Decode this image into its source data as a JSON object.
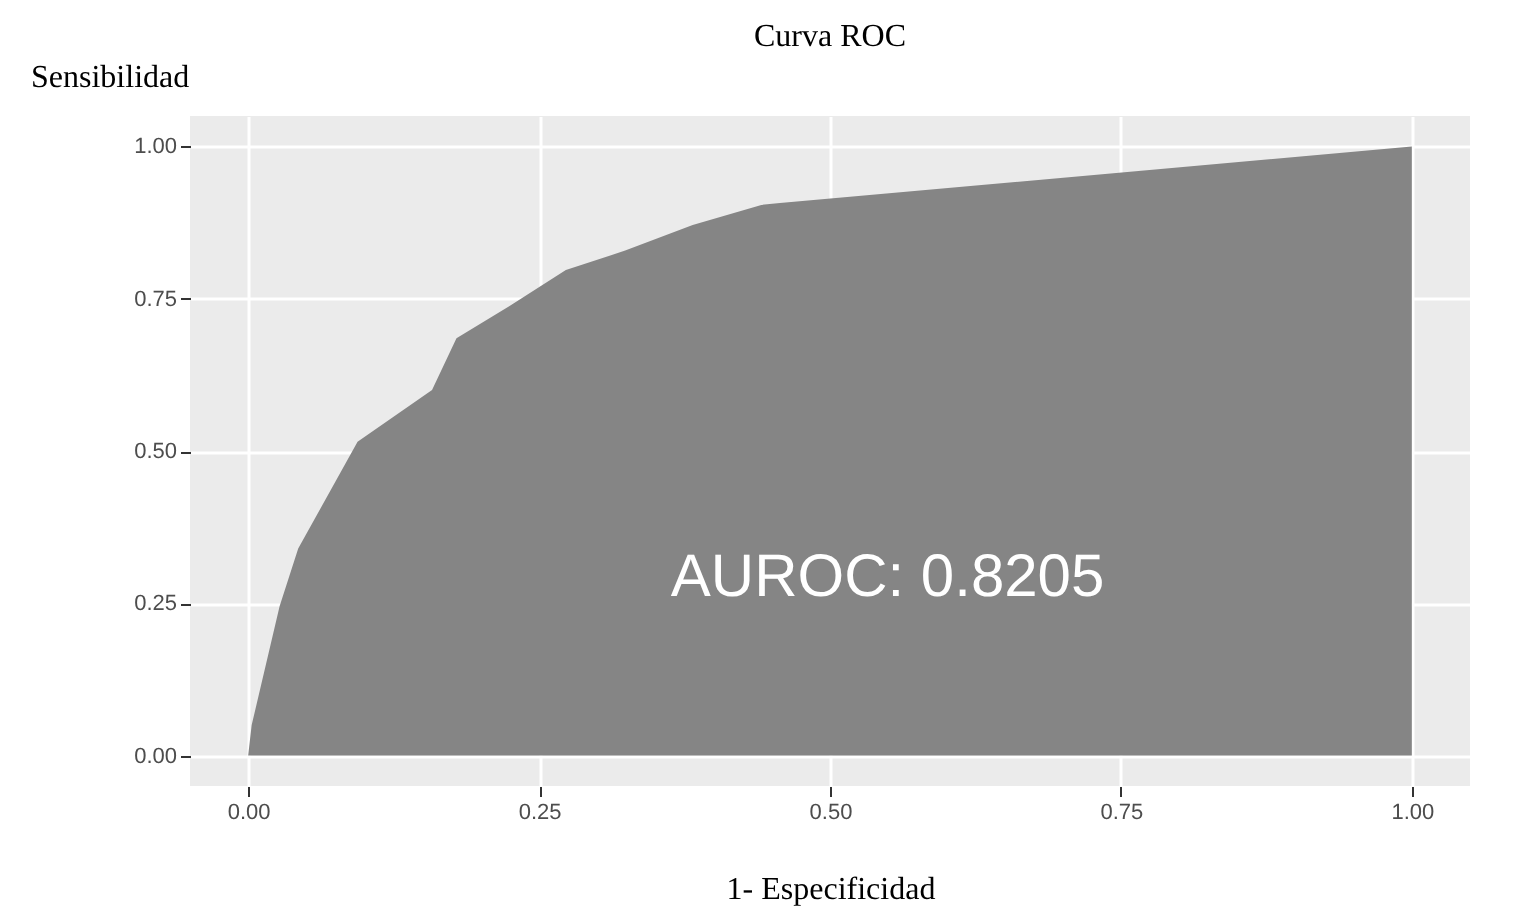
{
  "chart_data": {
    "type": "area",
    "title": "Curva ROC",
    "xlabel": "1- Especificidad",
    "ylabel": "Sensibilidad",
    "annotations": [
      "AUROC: 0.8205"
    ],
    "x": [
      0,
      0.003,
      0.027,
      0.043,
      0.094,
      0.158,
      0.179,
      0.228,
      0.273,
      0.324,
      0.382,
      0.441,
      0.457,
      1
    ],
    "series": [
      {
        "color": "#858585",
        "values": [
          0,
          0.05,
          0.245,
          0.34,
          0.515,
          0.6,
          0.685,
          0.742,
          0.797,
          0.829,
          0.871,
          0.904,
          0.907,
          1
        ]
      }
    ],
    "xlim": [
      -0.05,
      1.05
    ],
    "ylim": [
      -0.05,
      1.05
    ],
    "xticks": [
      {
        "value": 0,
        "label": "0.00"
      },
      {
        "value": 0.25,
        "label": "0.25"
      },
      {
        "value": 0.5,
        "label": "0.50"
      },
      {
        "value": 0.75,
        "label": "0.75"
      },
      {
        "value": 1,
        "label": "1.00"
      }
    ],
    "yticks": [
      {
        "value": 0,
        "label": "0.00"
      },
      {
        "value": 0.25,
        "label": "0.25"
      },
      {
        "value": 0.5,
        "label": "0.50"
      },
      {
        "value": 0.75,
        "label": "0.75"
      },
      {
        "value": 1,
        "label": "1.00"
      }
    ],
    "grid": true
  }
}
